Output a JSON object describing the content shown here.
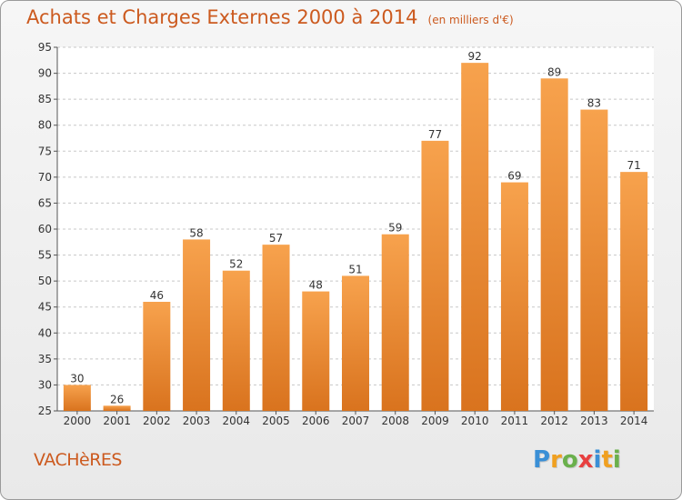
{
  "chart_data": {
    "type": "bar",
    "title": "Achats et Charges Externes 2000 à 2014",
    "unit": "(en milliers d'€)",
    "categories": [
      "2000",
      "2001",
      "2002",
      "2003",
      "2004",
      "2005",
      "2006",
      "2007",
      "2008",
      "2009",
      "2010",
      "2011",
      "2012",
      "2013",
      "2014"
    ],
    "values": [
      30,
      26,
      46,
      58,
      52,
      57,
      48,
      51,
      59,
      77,
      92,
      69,
      89,
      83,
      71
    ],
    "ylim": [
      25,
      95
    ],
    "yticks": [
      25,
      30,
      35,
      40,
      45,
      50,
      55,
      60,
      65,
      70,
      75,
      80,
      85,
      90,
      95
    ],
    "grid": "horizontal dashed",
    "bar_color_top": "#f7a24d",
    "bar_color_bottom": "#d9731e"
  },
  "commune": "VACHèRES",
  "brand": {
    "letters": [
      "P",
      "r",
      "o",
      "x",
      "i",
      "t",
      "i"
    ],
    "colors": [
      "#3a8fd6",
      "#f0a020",
      "#6ab04c",
      "#e84040",
      "#3a8fd6",
      "#f0a020",
      "#6ab04c"
    ]
  },
  "colors": {
    "title": "#cc5a1f"
  }
}
